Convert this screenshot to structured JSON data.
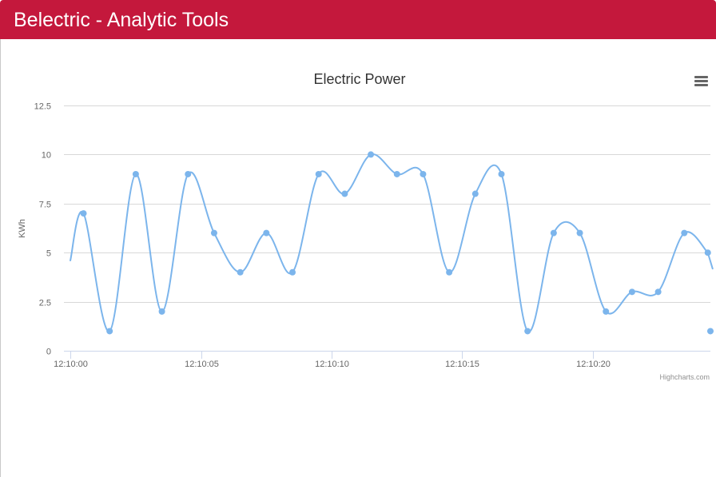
{
  "app": {
    "title": "Belectric - Analytic Tools",
    "header_color": "#c4183c"
  },
  "chart_menu": {
    "icon": "hamburger-menu-icon"
  },
  "chart_data": {
    "type": "line",
    "title": "Electric Power",
    "xlabel": "",
    "ylabel": "KWh",
    "x_tick_labels": [
      "12:10:00",
      "12:10:05",
      "12:10:10",
      "12:10:15",
      "12:10:20"
    ],
    "y_tick_labels": [
      "0",
      "2.5",
      "5",
      "7.5",
      "10",
      "12.5"
    ],
    "ylim": [
      0,
      12.5
    ],
    "xlim_seconds_after": [
      "12:10:00",
      -0.25,
      24.5
    ],
    "smoothing": "spline",
    "series": [
      {
        "color": "#7cb5ec",
        "x": [
          "12:10:00.5",
          "12:10:01.5",
          "12:10:02.5",
          "12:10:03.5",
          "12:10:04.5",
          "12:10:05.5",
          "12:10:06.5",
          "12:10:07.5",
          "12:10:08.5",
          "12:10:09.5",
          "12:10:10.5",
          "12:10:11.5",
          "12:10:12.5",
          "12:10:13.5",
          "12:10:14.5",
          "12:10:15.5",
          "12:10:16.5",
          "12:10:17.5",
          "12:10:18.5",
          "12:10:19.5",
          "12:10:20.5",
          "12:10:21.5",
          "12:10:22.5",
          "12:10:23.5",
          "12:10:24.4",
          "12:10:24.5"
        ],
        "values": [
          7,
          1,
          9,
          2,
          9,
          6,
          4,
          6,
          4,
          9,
          8,
          10,
          9,
          9,
          4,
          8,
          9,
          1,
          6,
          6,
          2,
          3,
          3,
          6,
          5,
          1
        ]
      }
    ],
    "grid": true,
    "legend": "none",
    "credits": "Highcharts.com"
  }
}
